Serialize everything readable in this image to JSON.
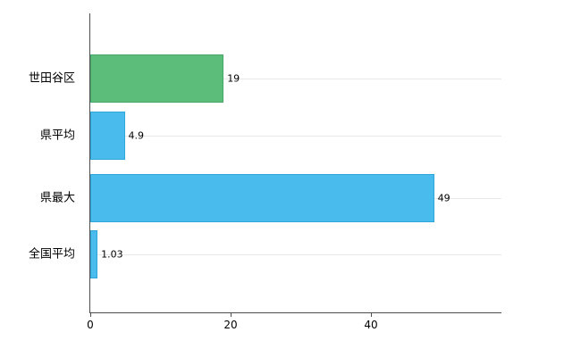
{
  "chart_data": {
    "type": "bar",
    "orientation": "horizontal",
    "title": "",
    "xlabel": "",
    "ylabel": "",
    "categories": [
      "世田谷区",
      "県平均",
      "県最大",
      "全国平均"
    ],
    "values": [
      19,
      4.9,
      49,
      1.03
    ],
    "value_labels": [
      "19",
      "4.9",
      "49",
      "1.03"
    ],
    "bar_colors": [
      "#5cbd7b",
      "#49bbec",
      "#49bbec",
      "#49bbec"
    ],
    "bar_border_colors": [
      "#45a866",
      "#2fa6d9",
      "#2fa6d9",
      "#2fa6d9"
    ],
    "x_ticks": [
      0,
      20,
      40
    ],
    "x_tick_labels": [
      "0",
      "20",
      "40"
    ],
    "xlim": [
      0,
      58.6
    ],
    "grid": "horizontal-category-lines",
    "legend": "none"
  },
  "colors": {
    "background": "#ffffff",
    "axis": "#4d4d4d",
    "grid": "#e8e8e8",
    "highlight_green": "#5cbd7b",
    "series_blue": "#49bbec"
  }
}
